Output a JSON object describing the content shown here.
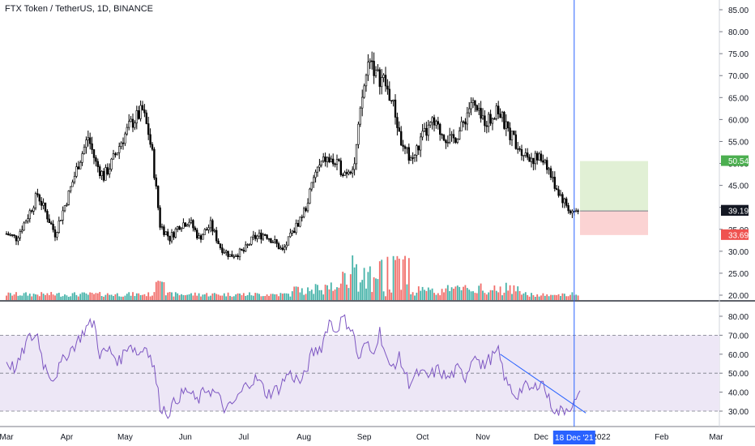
{
  "header": {
    "title": "FTX Token / TetherUS, 1D, BINANCE"
  },
  "colors": {
    "up": "#26a69a",
    "down": "#ef5350",
    "candle": "#000000",
    "cursor": "#2962ff",
    "rsi_line": "#7e57c2",
    "rsi_band": "#ede7f6",
    "target_zone": "#e1f0d5",
    "stop_zone": "#fbd3d3"
  },
  "chart_data": [
    {
      "type": "candlestick",
      "title": "FTX Token / TetherUS, 1D, BINANCE",
      "ylim": [
        19,
        87
      ],
      "y_ticks": [
        20,
        25,
        30,
        35,
        40,
        45,
        50,
        55,
        60,
        65,
        70,
        75,
        80,
        85
      ],
      "y_tick_labels": [
        "20.00",
        "25.00",
        "30.00",
        "35.00",
        "40.00",
        "45.00",
        "50.00",
        "55.00",
        "60.00",
        "65.00",
        "70.00",
        "75.00",
        "80.00",
        "85.00"
      ],
      "close_series": [
        {
          "date": "2021-03-01",
          "value": 34
        },
        {
          "date": "2021-03-06",
          "value": 33
        },
        {
          "date": "2021-03-12",
          "value": 38
        },
        {
          "date": "2021-03-17",
          "value": 43
        },
        {
          "date": "2021-03-22",
          "value": 38
        },
        {
          "date": "2021-03-26",
          "value": 34
        },
        {
          "date": "2021-04-02",
          "value": 43
        },
        {
          "date": "2021-04-07",
          "value": 50
        },
        {
          "date": "2021-04-12",
          "value": 56
        },
        {
          "date": "2021-04-16",
          "value": 50
        },
        {
          "date": "2021-04-20",
          "value": 47
        },
        {
          "date": "2021-04-24",
          "value": 50
        },
        {
          "date": "2021-04-29",
          "value": 55
        },
        {
          "date": "2021-05-04",
          "value": 59
        },
        {
          "date": "2021-05-10",
          "value": 62
        },
        {
          "date": "2021-05-13",
          "value": 57
        },
        {
          "date": "2021-05-15",
          "value": 52
        },
        {
          "date": "2021-05-19",
          "value": 36
        },
        {
          "date": "2021-05-24",
          "value": 33
        },
        {
          "date": "2021-05-29",
          "value": 36
        },
        {
          "date": "2021-06-03",
          "value": 37
        },
        {
          "date": "2021-06-08",
          "value": 33
        },
        {
          "date": "2021-06-14",
          "value": 36
        },
        {
          "date": "2021-06-19",
          "value": 31
        },
        {
          "date": "2021-06-24",
          "value": 29
        },
        {
          "date": "2021-07-01",
          "value": 30
        },
        {
          "date": "2021-07-06",
          "value": 33
        },
        {
          "date": "2021-07-12",
          "value": 34
        },
        {
          "date": "2021-07-17",
          "value": 32
        },
        {
          "date": "2021-07-21",
          "value": 30
        },
        {
          "date": "2021-07-26",
          "value": 34
        },
        {
          "date": "2021-08-02",
          "value": 40
        },
        {
          "date": "2021-08-07",
          "value": 48
        },
        {
          "date": "2021-08-12",
          "value": 51
        },
        {
          "date": "2021-08-17",
          "value": 50
        },
        {
          "date": "2021-08-22",
          "value": 48
        },
        {
          "date": "2021-08-27",
          "value": 50
        },
        {
          "date": "2021-08-31",
          "value": 65
        },
        {
          "date": "2021-09-04",
          "value": 75
        },
        {
          "date": "2021-09-07",
          "value": 70
        },
        {
          "date": "2021-09-11",
          "value": 69
        },
        {
          "date": "2021-09-16",
          "value": 63
        },
        {
          "date": "2021-09-21",
          "value": 53
        },
        {
          "date": "2021-09-26",
          "value": 51
        },
        {
          "date": "2021-10-01",
          "value": 56
        },
        {
          "date": "2021-10-06",
          "value": 59
        },
        {
          "date": "2021-10-11",
          "value": 57
        },
        {
          "date": "2021-10-16",
          "value": 55
        },
        {
          "date": "2021-10-21",
          "value": 58
        },
        {
          "date": "2021-10-26",
          "value": 64
        },
        {
          "date": "2021-10-31",
          "value": 60
        },
        {
          "date": "2021-11-05",
          "value": 60
        },
        {
          "date": "2021-11-08",
          "value": 63
        },
        {
          "date": "2021-11-13",
          "value": 58
        },
        {
          "date": "2021-11-18",
          "value": 55
        },
        {
          "date": "2021-11-23",
          "value": 52
        },
        {
          "date": "2021-11-28",
          "value": 51
        },
        {
          "date": "2021-12-03",
          "value": 51
        },
        {
          "date": "2021-12-07",
          "value": 46
        },
        {
          "date": "2021-12-12",
          "value": 42
        },
        {
          "date": "2021-12-16",
          "value": 39
        },
        {
          "date": "2021-12-20",
          "value": 39
        }
      ],
      "price_labels": [
        {
          "label": "50.54",
          "value": 50.54,
          "color": "#4caf50"
        },
        {
          "label": "39.30",
          "value": 39.3,
          "color": "#787b86"
        },
        {
          "label": "39.19",
          "value": 39.19,
          "color": "#131722"
        },
        {
          "label": "33.69",
          "value": 33.69,
          "color": "#ef5350"
        }
      ],
      "position": {
        "entry": 39.19,
        "target": 50.54,
        "stop": 33.69,
        "start_date": "2021-12-21",
        "end_date": "2022-01-25"
      }
    },
    {
      "type": "line",
      "name": "RSI",
      "ylim": [
        25,
        85
      ],
      "y_ticks": [
        30,
        40,
        50,
        60,
        70,
        80
      ],
      "y_tick_labels": [
        "30.00",
        "40.00",
        "50.00",
        "60.00",
        "70.00",
        "80.00"
      ],
      "band": [
        30,
        70
      ],
      "midline": 50,
      "series": [
        {
          "date": "2021-03-01",
          "value": 56
        },
        {
          "date": "2021-03-06",
          "value": 52
        },
        {
          "date": "2021-03-12",
          "value": 68
        },
        {
          "date": "2021-03-17",
          "value": 70
        },
        {
          "date": "2021-03-20",
          "value": 55
        },
        {
          "date": "2021-03-25",
          "value": 47
        },
        {
          "date": "2021-04-01",
          "value": 60
        },
        {
          "date": "2021-04-06",
          "value": 66
        },
        {
          "date": "2021-04-11",
          "value": 74
        },
        {
          "date": "2021-04-15",
          "value": 77
        },
        {
          "date": "2021-04-18",
          "value": 60
        },
        {
          "date": "2021-04-23",
          "value": 62
        },
        {
          "date": "2021-04-28",
          "value": 56
        },
        {
          "date": "2021-05-03",
          "value": 66
        },
        {
          "date": "2021-05-08",
          "value": 60
        },
        {
          "date": "2021-05-12",
          "value": 65
        },
        {
          "date": "2021-05-16",
          "value": 52
        },
        {
          "date": "2021-05-19",
          "value": 33
        },
        {
          "date": "2021-05-23",
          "value": 29
        },
        {
          "date": "2021-05-28",
          "value": 37
        },
        {
          "date": "2021-06-02",
          "value": 41
        },
        {
          "date": "2021-06-07",
          "value": 35
        },
        {
          "date": "2021-06-12",
          "value": 42
        },
        {
          "date": "2021-06-17",
          "value": 39
        },
        {
          "date": "2021-06-22",
          "value": 30
        },
        {
          "date": "2021-06-28",
          "value": 37
        },
        {
          "date": "2021-07-03",
          "value": 45
        },
        {
          "date": "2021-07-08",
          "value": 47
        },
        {
          "date": "2021-07-13",
          "value": 39
        },
        {
          "date": "2021-07-19",
          "value": 42
        },
        {
          "date": "2021-07-24",
          "value": 50
        },
        {
          "date": "2021-07-31",
          "value": 45
        },
        {
          "date": "2021-08-05",
          "value": 60
        },
        {
          "date": "2021-08-10",
          "value": 64
        },
        {
          "date": "2021-08-14",
          "value": 78
        },
        {
          "date": "2021-08-17",
          "value": 72
        },
        {
          "date": "2021-08-21",
          "value": 79
        },
        {
          "date": "2021-08-26",
          "value": 73
        },
        {
          "date": "2021-08-29",
          "value": 57
        },
        {
          "date": "2021-09-02",
          "value": 66
        },
        {
          "date": "2021-09-05",
          "value": 60
        },
        {
          "date": "2021-09-09",
          "value": 72
        },
        {
          "date": "2021-09-14",
          "value": 52
        },
        {
          "date": "2021-09-19",
          "value": 58
        },
        {
          "date": "2021-09-24",
          "value": 45
        },
        {
          "date": "2021-09-29",
          "value": 50
        },
        {
          "date": "2021-10-04",
          "value": 48
        },
        {
          "date": "2021-10-09",
          "value": 52
        },
        {
          "date": "2021-10-14",
          "value": 47
        },
        {
          "date": "2021-10-19",
          "value": 52
        },
        {
          "date": "2021-10-23",
          "value": 48
        },
        {
          "date": "2021-10-28",
          "value": 62
        },
        {
          "date": "2021-10-31",
          "value": 53
        },
        {
          "date": "2021-11-04",
          "value": 57
        },
        {
          "date": "2021-11-09",
          "value": 61
        },
        {
          "date": "2021-11-13",
          "value": 45
        },
        {
          "date": "2021-11-18",
          "value": 38
        },
        {
          "date": "2021-11-22",
          "value": 43
        },
        {
          "date": "2021-11-27",
          "value": 41
        },
        {
          "date": "2021-12-01",
          "value": 47
        },
        {
          "date": "2021-12-05",
          "value": 36
        },
        {
          "date": "2021-12-09",
          "value": 29
        },
        {
          "date": "2021-12-13",
          "value": 31
        },
        {
          "date": "2021-12-18",
          "value": 34
        },
        {
          "date": "2021-12-21",
          "value": 38
        }
      ],
      "trendline": [
        {
          "date": "2021-11-10",
          "value": 60
        },
        {
          "date": "2021-12-24",
          "value": 29
        }
      ]
    }
  ],
  "x_axis": {
    "labels": [
      {
        "label": "Mar",
        "date": "2021-03-01"
      },
      {
        "label": "Apr",
        "date": "2021-04-01"
      },
      {
        "label": "May",
        "date": "2021-05-01"
      },
      {
        "label": "Jun",
        "date": "2021-06-01"
      },
      {
        "label": "Jul",
        "date": "2021-07-01"
      },
      {
        "label": "Aug",
        "date": "2021-08-01"
      },
      {
        "label": "Sep",
        "date": "2021-09-01"
      },
      {
        "label": "Oct",
        "date": "2021-10-01"
      },
      {
        "label": "Nov",
        "date": "2021-11-01"
      },
      {
        "label": "Dec",
        "date": "2021-12-01"
      },
      {
        "label": "2022",
        "date": "2022-01-01"
      },
      {
        "label": "Feb",
        "date": "2022-02-01"
      },
      {
        "label": "Mar",
        "date": "2022-03-01"
      }
    ],
    "cursor_label": "18 Dec '21",
    "cursor_date": "2021-12-18"
  }
}
